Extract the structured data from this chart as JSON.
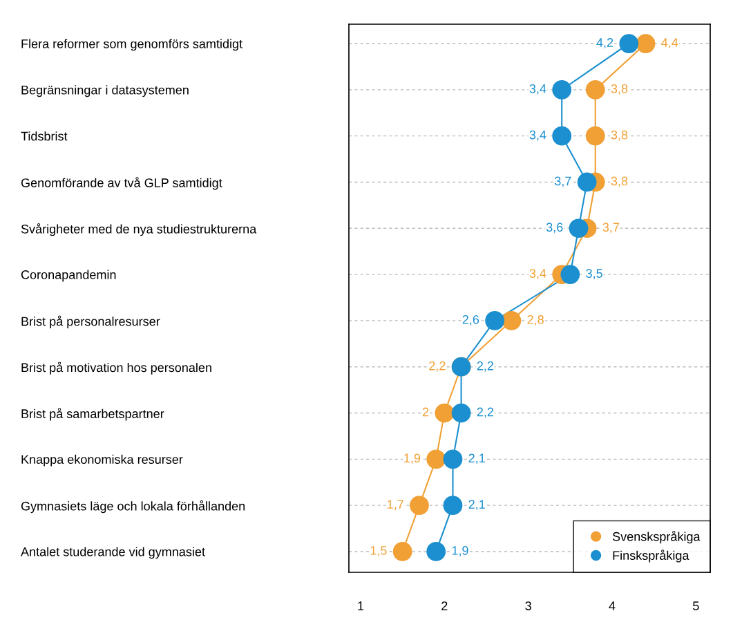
{
  "chart_data": {
    "type": "line",
    "orientation": "horizontal",
    "categories": [
      "Flera reformer som genomförs samtidigt",
      "Begränsningar i datasystemen",
      "Tidsbrist",
      "Genomförande av två GLP samtidigt",
      "Svårigheter med de nya studiestrukturerna",
      "Coronapandemin",
      "Brist på personalresurser",
      "Brist på motivation hos personalen",
      "Brist på samarbetspartner",
      "Knappa ekonomiska resurser",
      "Gymnasiets läge och lokala förhållanden",
      "Antalet studerande vid gymnasiet"
    ],
    "series": [
      {
        "name": "Svenskspråkiga",
        "color": "#f0a035",
        "values": [
          4.4,
          3.8,
          3.8,
          3.8,
          3.7,
          3.4,
          2.8,
          2.2,
          2,
          1.9,
          1.7,
          1.5
        ],
        "value_labels": [
          "4,4",
          "3,8",
          "3,8",
          "3,8",
          "3,7",
          "3,4",
          "2,8",
          "2,2",
          "2",
          "1,9",
          "1,7",
          "1,5"
        ]
      },
      {
        "name": "Finskspråkiga",
        "color": "#1b8fcf",
        "values": [
          4.2,
          3.4,
          3.4,
          3.7,
          3.6,
          3.5,
          2.6,
          2.2,
          2.2,
          2.1,
          2.1,
          1.9
        ],
        "value_labels": [
          "4,2",
          "3,4",
          "3,4",
          "3,7",
          "3,6",
          "3,5",
          "2,6",
          "2,2",
          "2,2",
          "2,1",
          "2,1",
          "1,9"
        ]
      }
    ],
    "xlim": [
      0.86,
      5.17
    ],
    "xticks": [
      1,
      2,
      3,
      4,
      5
    ],
    "grid": "y",
    "legend": "bottom right",
    "marker": "circle",
    "line_style": "solid"
  }
}
